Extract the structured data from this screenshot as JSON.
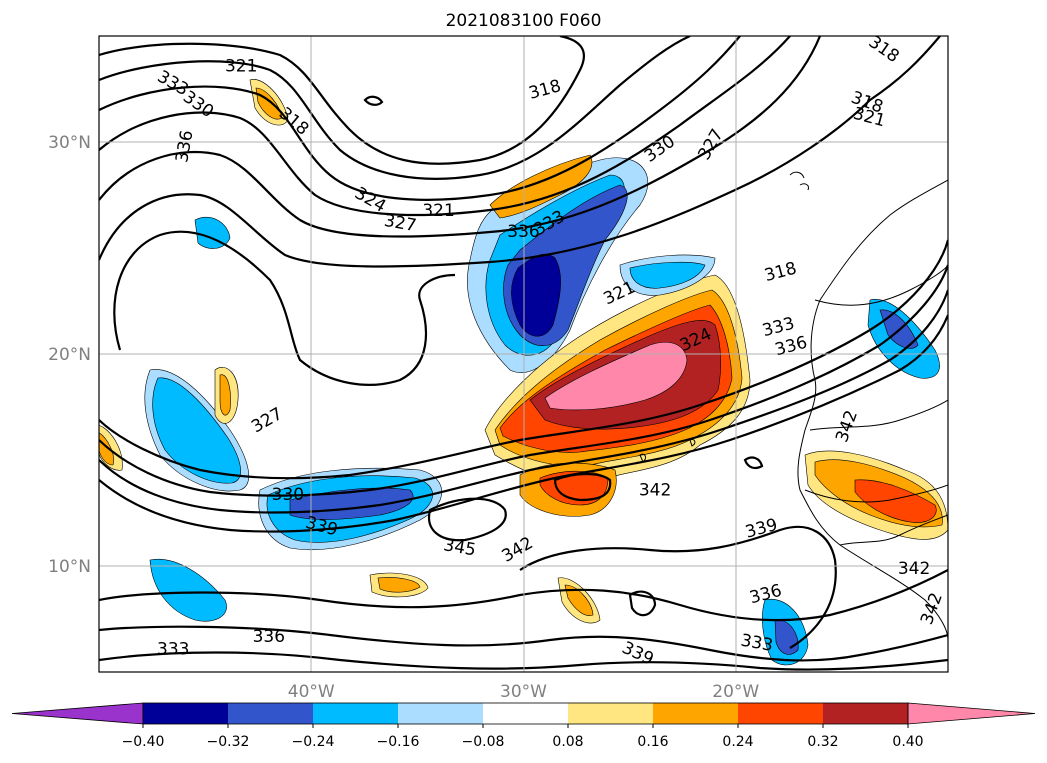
{
  "title": "2021083100 F060",
  "lat_ticks": [
    {
      "value": 30,
      "label": "30°N"
    },
    {
      "value": 20,
      "label": "20°N"
    },
    {
      "value": 10,
      "label": "10°N"
    }
  ],
  "lon_ticks": [
    {
      "value": -40,
      "label": "40°W"
    },
    {
      "value": -30,
      "label": "30°W"
    },
    {
      "value": -20,
      "label": "20°W"
    }
  ],
  "extent": {
    "lon": [
      -50,
      -10
    ],
    "lat": [
      5,
      35
    ]
  },
  "colorbar": {
    "labels": [
      "−0.40",
      "−0.32",
      "−0.24",
      "−0.16",
      "−0.08",
      "0.08",
      "0.16",
      "0.24",
      "0.32",
      "0.40"
    ],
    "colors": [
      "#9933cc",
      "#000099",
      "#3355cc",
      "#00bbff",
      "#aaddff",
      "#ffffff",
      "#ffe680",
      "#ffa500",
      "#ff4500",
      "#b22222",
      "#ff88aa"
    ]
  },
  "contour_labels": [
    {
      "text": "321",
      "lon": -43.3,
      "lat": 33.6,
      "rot": 0
    },
    {
      "text": "333",
      "lon": -46.5,
      "lat": 32.8,
      "rot": 30
    },
    {
      "text": "330",
      "lon": -45.3,
      "lat": 31.8,
      "rot": 35
    },
    {
      "text": "336",
      "lon": -46.0,
      "lat": 29.8,
      "rot": -80
    },
    {
      "text": "318",
      "lon": -40.8,
      "lat": 31.0,
      "rot": 40
    },
    {
      "text": "324",
      "lon": -37.2,
      "lat": 27.3,
      "rot": 30
    },
    {
      "text": "321",
      "lon": -34.0,
      "lat": 26.8,
      "rot": 0
    },
    {
      "text": "327",
      "lon": -35.8,
      "lat": 26.2,
      "rot": 10
    },
    {
      "text": "336",
      "lon": -30.0,
      "lat": 25.8,
      "rot": 0
    },
    {
      "text": "333",
      "lon": -28.8,
      "lat": 26.2,
      "rot": -30
    },
    {
      "text": "318",
      "lon": -29.0,
      "lat": 32.5,
      "rot": -15
    },
    {
      "text": "330",
      "lon": -23.6,
      "lat": 29.7,
      "rot": -35
    },
    {
      "text": "327",
      "lon": -21.2,
      "lat": 29.9,
      "rot": -60
    },
    {
      "text": "318",
      "lon": -13.0,
      "lat": 34.4,
      "rot": 35
    },
    {
      "text": "318",
      "lon": -13.8,
      "lat": 31.9,
      "rot": 20
    },
    {
      "text": "321",
      "lon": -13.7,
      "lat": 31.2,
      "rot": 15
    },
    {
      "text": "318",
      "lon": -17.9,
      "lat": 23.9,
      "rot": -15
    },
    {
      "text": "321",
      "lon": -25.5,
      "lat": 22.9,
      "rot": -25
    },
    {
      "text": "324",
      "lon": -21.9,
      "lat": 20.7,
      "rot": -25
    },
    {
      "text": "333",
      "lon": -18.0,
      "lat": 21.3,
      "rot": -15
    },
    {
      "text": "336",
      "lon": -17.4,
      "lat": 20.4,
      "rot": -15
    },
    {
      "text": "342",
      "lon": -14.8,
      "lat": 16.6,
      "rot": -70
    },
    {
      "text": "327",
      "lon": -42.1,
      "lat": 16.9,
      "rot": -30
    },
    {
      "text": "330",
      "lon": -41.1,
      "lat": 13.4,
      "rot": 0
    },
    {
      "text": "339",
      "lon": -39.5,
      "lat": 11.9,
      "rot": 15
    },
    {
      "text": "342",
      "lon": -23.8,
      "lat": 13.6,
      "rot": 0
    },
    {
      "text": "345",
      "lon": -33.0,
      "lat": 10.9,
      "rot": 10
    },
    {
      "text": "342",
      "lon": -30.3,
      "lat": 10.8,
      "rot": -30
    },
    {
      "text": "339",
      "lon": -18.8,
      "lat": 11.8,
      "rot": -15
    },
    {
      "text": "342",
      "lon": -11.6,
      "lat": 9.9,
      "rot": 0
    },
    {
      "text": "342",
      "lon": -10.8,
      "lat": 8.0,
      "rot": -70
    },
    {
      "text": "336",
      "lon": -18.6,
      "lat": 8.7,
      "rot": -15
    },
    {
      "text": "336",
      "lon": -42.0,
      "lat": 6.7,
      "rot": 0
    },
    {
      "text": "333",
      "lon": -46.5,
      "lat": 6.1,
      "rot": 0
    },
    {
      "text": "333",
      "lon": -19.0,
      "lat": 6.4,
      "rot": 10
    },
    {
      "text": "339",
      "lon": -24.6,
      "lat": 5.9,
      "rot": 25
    }
  ]
}
